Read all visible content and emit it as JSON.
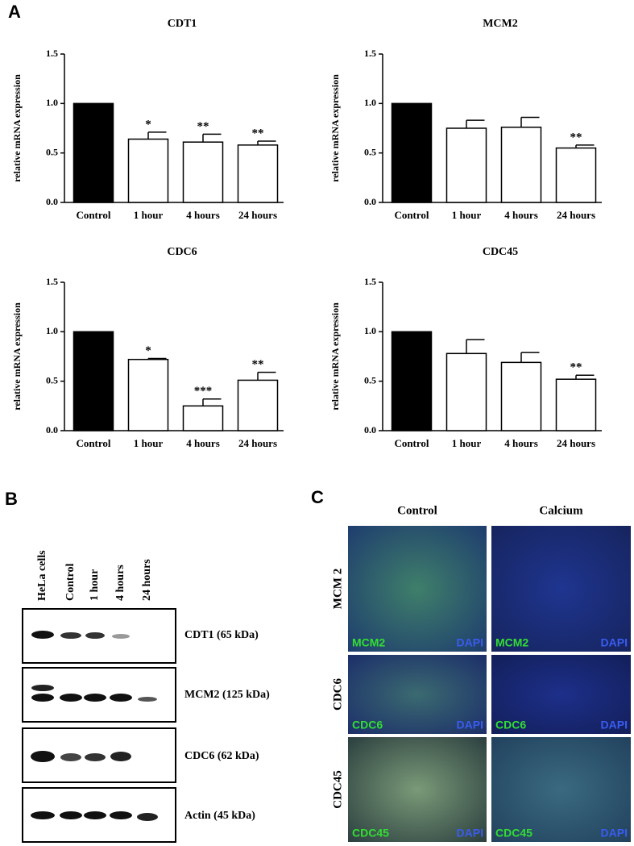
{
  "panels": {
    "a": "A",
    "b": "B",
    "c": "C"
  },
  "chart_data": [
    {
      "type": "bar",
      "title": "CDT1",
      "ylabel": "relative mRNA expression",
      "categories": [
        "Control",
        "1 hour",
        "4 hours",
        "24 hours"
      ],
      "values": [
        1.0,
        0.64,
        0.61,
        0.58
      ],
      "errors": [
        null,
        0.07,
        0.08,
        0.04
      ],
      "annotations": [
        null,
        "*",
        "**",
        "**"
      ],
      "colors": [
        "#000000",
        "#ffffff",
        "#ffffff",
        "#ffffff"
      ],
      "ylim": [
        0,
        1.5
      ],
      "yticks": [
        {
          "value": 0,
          "label": "0.0"
        },
        {
          "value": 0.5,
          "label": "0.5"
        },
        {
          "value": 1,
          "label": "1.0"
        },
        {
          "value": 1.5,
          "label": "1.5"
        }
      ]
    },
    {
      "type": "bar",
      "title": "MCM2",
      "ylabel": "relative mRNA expression",
      "categories": [
        "Control",
        "1 hour",
        "4 hours",
        "24 hours"
      ],
      "values": [
        1.0,
        0.75,
        0.76,
        0.55
      ],
      "errors": [
        null,
        0.08,
        0.1,
        0.03
      ],
      "annotations": [
        null,
        null,
        null,
        "**"
      ],
      "colors": [
        "#000000",
        "#ffffff",
        "#ffffff",
        "#ffffff"
      ],
      "ylim": [
        0,
        1.5
      ],
      "yticks": [
        {
          "value": 0,
          "label": "0.0"
        },
        {
          "value": 0.5,
          "label": "0.5"
        },
        {
          "value": 1,
          "label": "1.0"
        },
        {
          "value": 1.5,
          "label": "1.5"
        }
      ]
    },
    {
      "type": "bar",
      "title": "CDC6",
      "ylabel": "relative mRNA expression",
      "categories": [
        "Control",
        "1 hour",
        "4 hours",
        "24 hours"
      ],
      "values": [
        1.0,
        0.72,
        0.25,
        0.51
      ],
      "errors": [
        null,
        0.01,
        0.07,
        0.08
      ],
      "annotations": [
        null,
        "*",
        "***",
        "**"
      ],
      "colors": [
        "#000000",
        "#ffffff",
        "#ffffff",
        "#ffffff"
      ],
      "ylim": [
        0,
        1.5
      ],
      "yticks": [
        {
          "value": 0,
          "label": "0.0"
        },
        {
          "value": 0.5,
          "label": "0.5"
        },
        {
          "value": 1,
          "label": "1.0"
        },
        {
          "value": 1.5,
          "label": "1.5"
        }
      ]
    },
    {
      "type": "bar",
      "title": "CDC45",
      "ylabel": "relative mRNA expression",
      "categories": [
        "Control",
        "1 hour",
        "4 hours",
        "24 hours"
      ],
      "values": [
        1.0,
        0.78,
        0.69,
        0.52
      ],
      "errors": [
        null,
        0.14,
        0.1,
        0.04
      ],
      "annotations": [
        null,
        null,
        null,
        "**"
      ],
      "colors": [
        "#000000",
        "#ffffff",
        "#ffffff",
        "#ffffff"
      ],
      "ylim": [
        0,
        1.5
      ],
      "yticks": [
        {
          "value": 0,
          "label": "0.0"
        },
        {
          "value": 0.5,
          "label": "0.5"
        },
        {
          "value": 1,
          "label": "1.0"
        },
        {
          "value": 1.5,
          "label": "1.5"
        }
      ]
    }
  ],
  "blot": {
    "lanes": [
      "HeLa cells",
      "Control",
      "1 hour",
      "4 hours",
      "24 hours"
    ],
    "rows": [
      "CDT1 (65 kDa)",
      "MCM2 (125 kDa)",
      "CDC6 (62 kDa)",
      "Actin (45 kDa)"
    ]
  },
  "microscopy": {
    "columns": [
      "Control",
      "Calcium"
    ],
    "rows": [
      {
        "label": "MCM 2",
        "tiles": [
          [
            "MCM2",
            "DAPI"
          ],
          [
            "MCM2",
            "DAPI"
          ]
        ]
      },
      {
        "label": "CDC6",
        "tiles": [
          [
            "CDC6",
            "DAPI"
          ],
          [
            "CDC6",
            "DAPI"
          ]
        ]
      },
      {
        "label": "CDC45",
        "tiles": [
          [
            "CDC45",
            "DAPI"
          ],
          [
            "CDC45",
            "DAPI"
          ]
        ]
      }
    ]
  }
}
